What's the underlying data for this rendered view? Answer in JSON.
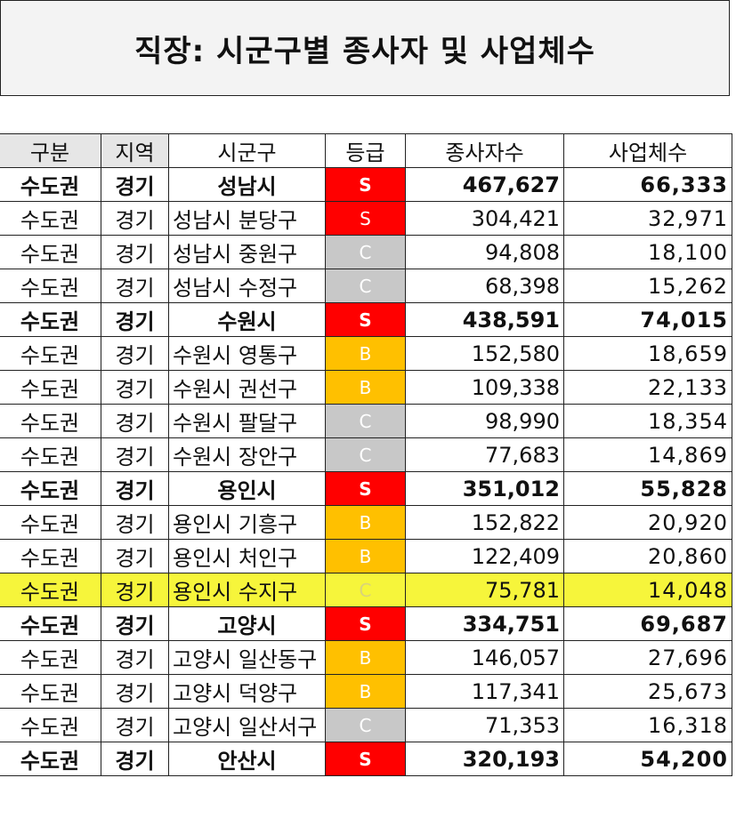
{
  "title": "직장: 시군구별 종사자 및 사업체수",
  "colors": {
    "S": "#ff0000",
    "B": "#ffc000",
    "C": "#c8c8c8",
    "highlight": "#f6f53b"
  },
  "headers": [
    "구분",
    "지역",
    "시군구",
    "등급",
    "종사자수",
    "사업체수"
  ],
  "rows": [
    {
      "region": "수도권",
      "area": "경기",
      "district": "성남시",
      "grade": "S",
      "workers": "467,627",
      "businesses": "66,333",
      "bold": true
    },
    {
      "region": "수도권",
      "area": "경기",
      "district": "성남시 분당구",
      "grade": "S",
      "workers": "304,421",
      "businesses": "32,971"
    },
    {
      "region": "수도권",
      "area": "경기",
      "district": "성남시 중원구",
      "grade": "C",
      "workers": "94,808",
      "businesses": "18,100"
    },
    {
      "region": "수도권",
      "area": "경기",
      "district": "성남시 수정구",
      "grade": "C",
      "workers": "68,398",
      "businesses": "15,262"
    },
    {
      "region": "수도권",
      "area": "경기",
      "district": "수원시",
      "grade": "S",
      "workers": "438,591",
      "businesses": "74,015",
      "bold": true
    },
    {
      "region": "수도권",
      "area": "경기",
      "district": "수원시 영통구",
      "grade": "B",
      "workers": "152,580",
      "businesses": "18,659"
    },
    {
      "region": "수도권",
      "area": "경기",
      "district": "수원시 권선구",
      "grade": "B",
      "workers": "109,338",
      "businesses": "22,133"
    },
    {
      "region": "수도권",
      "area": "경기",
      "district": "수원시 팔달구",
      "grade": "C",
      "workers": "98,990",
      "businesses": "18,354"
    },
    {
      "region": "수도권",
      "area": "경기",
      "district": "수원시 장안구",
      "grade": "C",
      "workers": "77,683",
      "businesses": "14,869"
    },
    {
      "region": "수도권",
      "area": "경기",
      "district": "용인시",
      "grade": "S",
      "workers": "351,012",
      "businesses": "55,828",
      "bold": true
    },
    {
      "region": "수도권",
      "area": "경기",
      "district": "용인시 기흥구",
      "grade": "B",
      "workers": "152,822",
      "businesses": "20,920"
    },
    {
      "region": "수도권",
      "area": "경기",
      "district": "용인시 처인구",
      "grade": "B",
      "workers": "122,409",
      "businesses": "20,860"
    },
    {
      "region": "수도권",
      "area": "경기",
      "district": "용인시 수지구",
      "grade": "C",
      "workers": "75,781",
      "businesses": "14,048",
      "highlight": true
    },
    {
      "region": "수도권",
      "area": "경기",
      "district": "고양시",
      "grade": "S",
      "workers": "334,751",
      "businesses": "69,687",
      "bold": true
    },
    {
      "region": "수도권",
      "area": "경기",
      "district": "고양시 일산동구",
      "grade": "B",
      "workers": "146,057",
      "businesses": "27,696"
    },
    {
      "region": "수도권",
      "area": "경기",
      "district": "고양시 덕양구",
      "grade": "B",
      "workers": "117,341",
      "businesses": "25,673"
    },
    {
      "region": "수도권",
      "area": "경기",
      "district": "고양시 일산서구",
      "grade": "C",
      "workers": "71,353",
      "businesses": "16,318"
    },
    {
      "region": "수도권",
      "area": "경기",
      "district": "안산시",
      "grade": "S",
      "workers": "320,193",
      "businesses": "54,200",
      "bold": true
    }
  ]
}
